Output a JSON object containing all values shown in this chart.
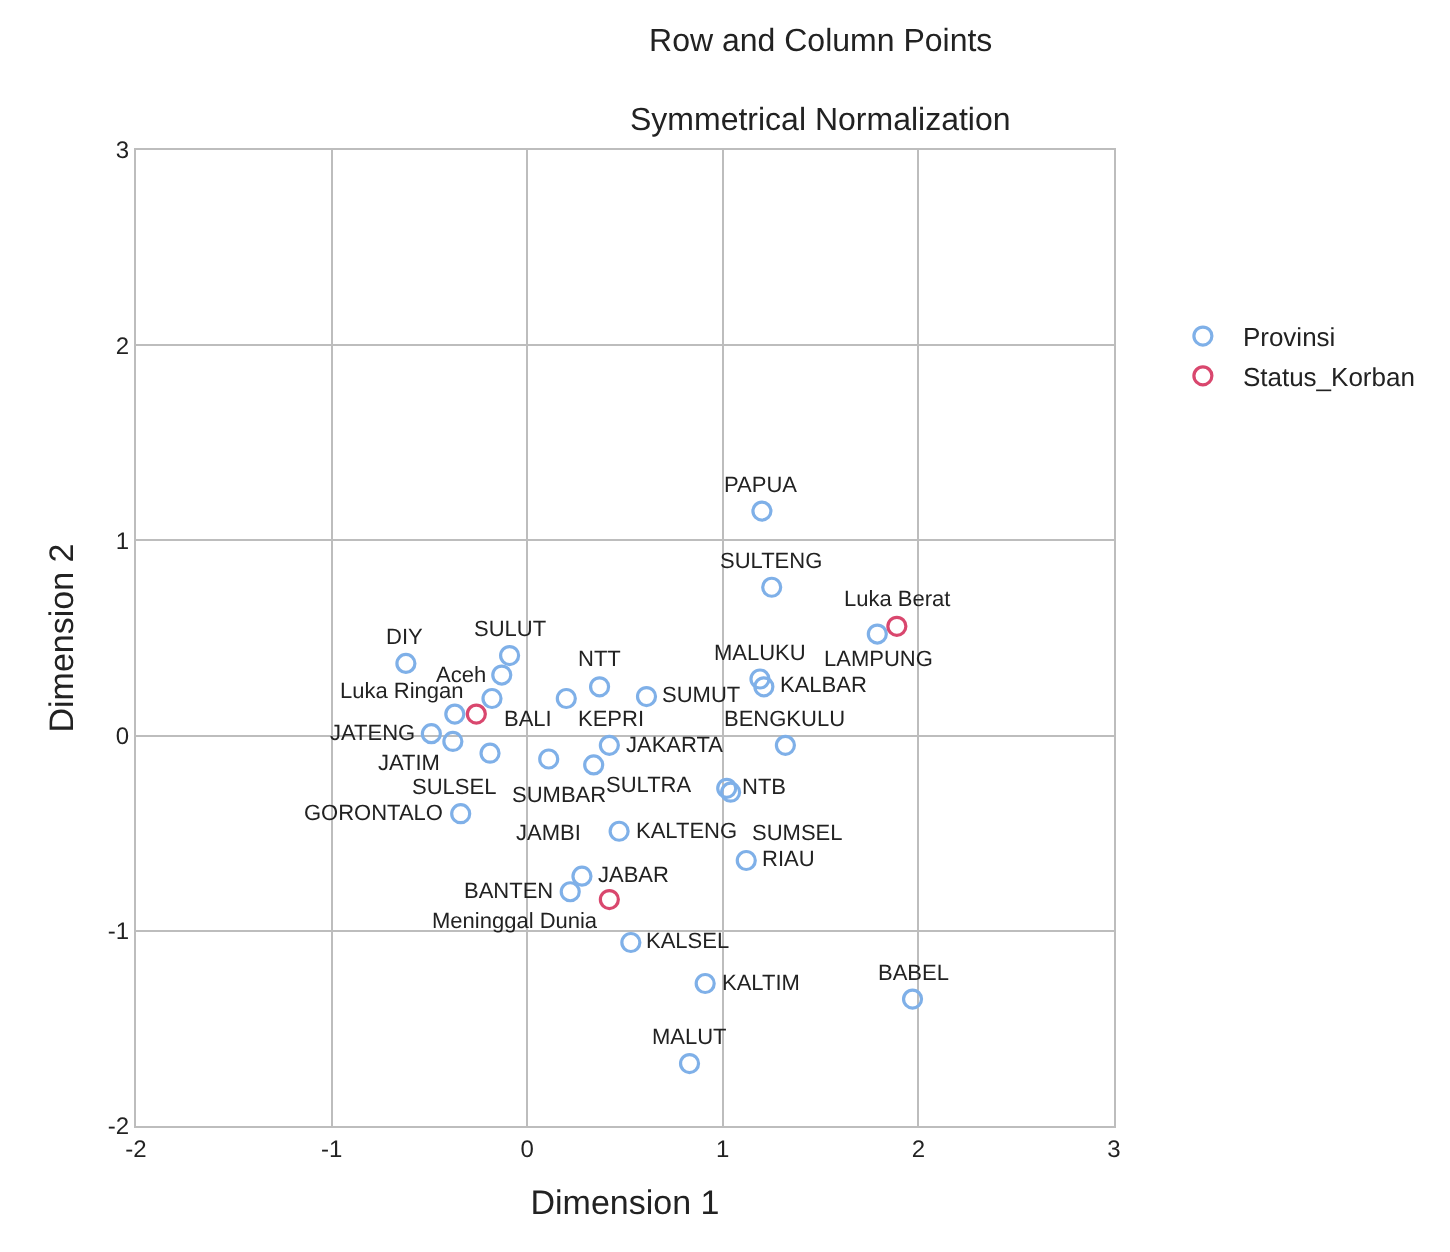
{
  "chart_data": {
    "type": "scatter",
    "title": "Row and Column Points",
    "subtitle": "Symmetrical Normalization",
    "xlabel": "Dimension 1",
    "ylabel": "Dimension 2",
    "xlim": [
      -2,
      3
    ],
    "ylim": [
      -2,
      3
    ],
    "xticks": [
      -2,
      -1,
      0,
      1,
      2,
      3
    ],
    "yticks": [
      -2,
      -1,
      0,
      1,
      2,
      3
    ],
    "grid": true,
    "legend": "top right",
    "marker": "circle",
    "series": [
      {
        "name": "Provinsi",
        "color": "#7fb0e8",
        "x": [
          -0.62,
          -0.09,
          -0.13,
          -0.18,
          -0.37,
          -0.49,
          -0.38,
          -0.19,
          0.2,
          0.37,
          0.61,
          0.11,
          0.34,
          0.42,
          -0.34,
          0.47,
          0.28,
          0.22,
          0.53,
          0.91,
          0.83,
          1.97,
          1.12,
          1.02,
          1.04,
          1.32,
          1.19,
          1.21,
          1.79,
          1.25,
          1.2
        ],
        "values": [
          0.37,
          0.41,
          0.31,
          0.19,
          0.11,
          0.01,
          -0.03,
          -0.09,
          0.19,
          0.25,
          0.2,
          -0.12,
          -0.15,
          -0.05,
          -0.4,
          -0.49,
          -0.72,
          -0.8,
          -1.06,
          -1.27,
          -1.68,
          -1.35,
          -0.64,
          -0.27,
          -0.29,
          -0.05,
          0.29,
          0.25,
          0.52,
          0.76,
          1.15
        ]
      },
      {
        "name": "Status_Korban",
        "color": "#d9476e",
        "x": [
          -0.26,
          1.89,
          0.42
        ],
        "values": [
          0.11,
          0.56,
          -0.84
        ]
      }
    ],
    "annotations": [
      {
        "text": "DIY",
        "x": -0.62,
        "y": 0.37
      },
      {
        "text": "SULUT",
        "x": -0.09,
        "y": 0.41
      },
      {
        "text": "Aceh",
        "x": -0.13,
        "y": 0.31
      },
      {
        "text": "BALI",
        "x": -0.18,
        "y": 0.19
      },
      {
        "text": "SULSEL",
        "x": -0.37,
        "y": 0.11
      },
      {
        "text": "JATENG",
        "x": -0.49,
        "y": 0.01
      },
      {
        "text": "JATIM",
        "x": -0.38,
        "y": -0.03
      },
      {
        "text": "SUMBAR",
        "x": -0.19,
        "y": -0.09
      },
      {
        "text": "KEPRI",
        "x": 0.2,
        "y": 0.19
      },
      {
        "text": "NTT",
        "x": 0.37,
        "y": 0.25
      },
      {
        "text": "SUMUT",
        "x": 0.61,
        "y": 0.2
      },
      {
        "text": "JAMBI",
        "x": 0.11,
        "y": -0.12
      },
      {
        "text": "SULTRA",
        "x": 0.34,
        "y": -0.15
      },
      {
        "text": "JAKARTA",
        "x": 0.42,
        "y": -0.05
      },
      {
        "text": "GORONTALO",
        "x": -0.34,
        "y": -0.4
      },
      {
        "text": "KALTENG",
        "x": 0.47,
        "y": -0.49
      },
      {
        "text": "JABAR",
        "x": 0.28,
        "y": -0.72
      },
      {
        "text": "BANTEN",
        "x": 0.22,
        "y": -0.8
      },
      {
        "text": "KALSEL",
        "x": 0.53,
        "y": -1.06
      },
      {
        "text": "KALTIM",
        "x": 0.91,
        "y": -1.27
      },
      {
        "text": "MALUT",
        "x": 0.83,
        "y": -1.68
      },
      {
        "text": "BABEL",
        "x": 1.97,
        "y": -1.35
      },
      {
        "text": "RIAU",
        "x": 1.12,
        "y": -0.64
      },
      {
        "text": "NTB",
        "x": 1.02,
        "y": -0.27
      },
      {
        "text": "SUMSEL",
        "x": 1.04,
        "y": -0.29
      },
      {
        "text": "BENGKULU",
        "x": 1.32,
        "y": -0.05
      },
      {
        "text": "MALUKU",
        "x": 1.19,
        "y": 0.29
      },
      {
        "text": "KALBAR",
        "x": 1.21,
        "y": 0.25
      },
      {
        "text": "LAMPUNG",
        "x": 1.79,
        "y": 0.52
      },
      {
        "text": "SULTENG",
        "x": 1.25,
        "y": 0.76
      },
      {
        "text": "PAPUA",
        "x": 1.2,
        "y": 1.15
      },
      {
        "text": "Luka Ringan",
        "x": -0.26,
        "y": 0.11
      },
      {
        "text": "Luka Berat",
        "x": 1.89,
        "y": 0.56
      },
      {
        "text": "Meninggal Dunia",
        "x": 0.42,
        "y": -0.84
      }
    ]
  }
}
